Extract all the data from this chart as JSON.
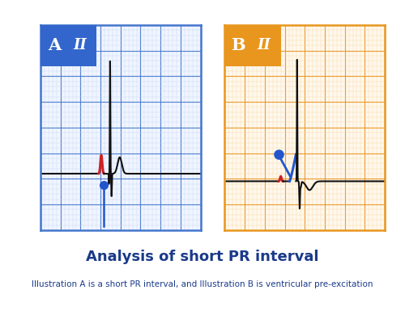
{
  "title": "Analysis of short PR interval",
  "subtitle": "Illustration A is a short PR interval, and Illustration B is ventricular pre-excitation",
  "title_color": "#1a3a8a",
  "title_fontsize": 13,
  "subtitle_fontsize": 7.5,
  "panel_A_label": "A",
  "panel_B_label": "B",
  "lead_label": "II",
  "header_color_A": "#3366cc",
  "header_color_B": "#e8961e",
  "grid_color_A": "#4477cc",
  "grid_color_B": "#e8961e",
  "grid_minor_color_A": "#c5d5f0",
  "grid_minor_color_B": "#f5d99a",
  "ecg_color": "#111111",
  "red_color": "#cc2222",
  "blue_color": "#2255cc",
  "dot_color": "#2255cc",
  "background": "#ffffff",
  "panel_bg": "#f0f5ff",
  "panel_bg_B": "#fff8ee"
}
